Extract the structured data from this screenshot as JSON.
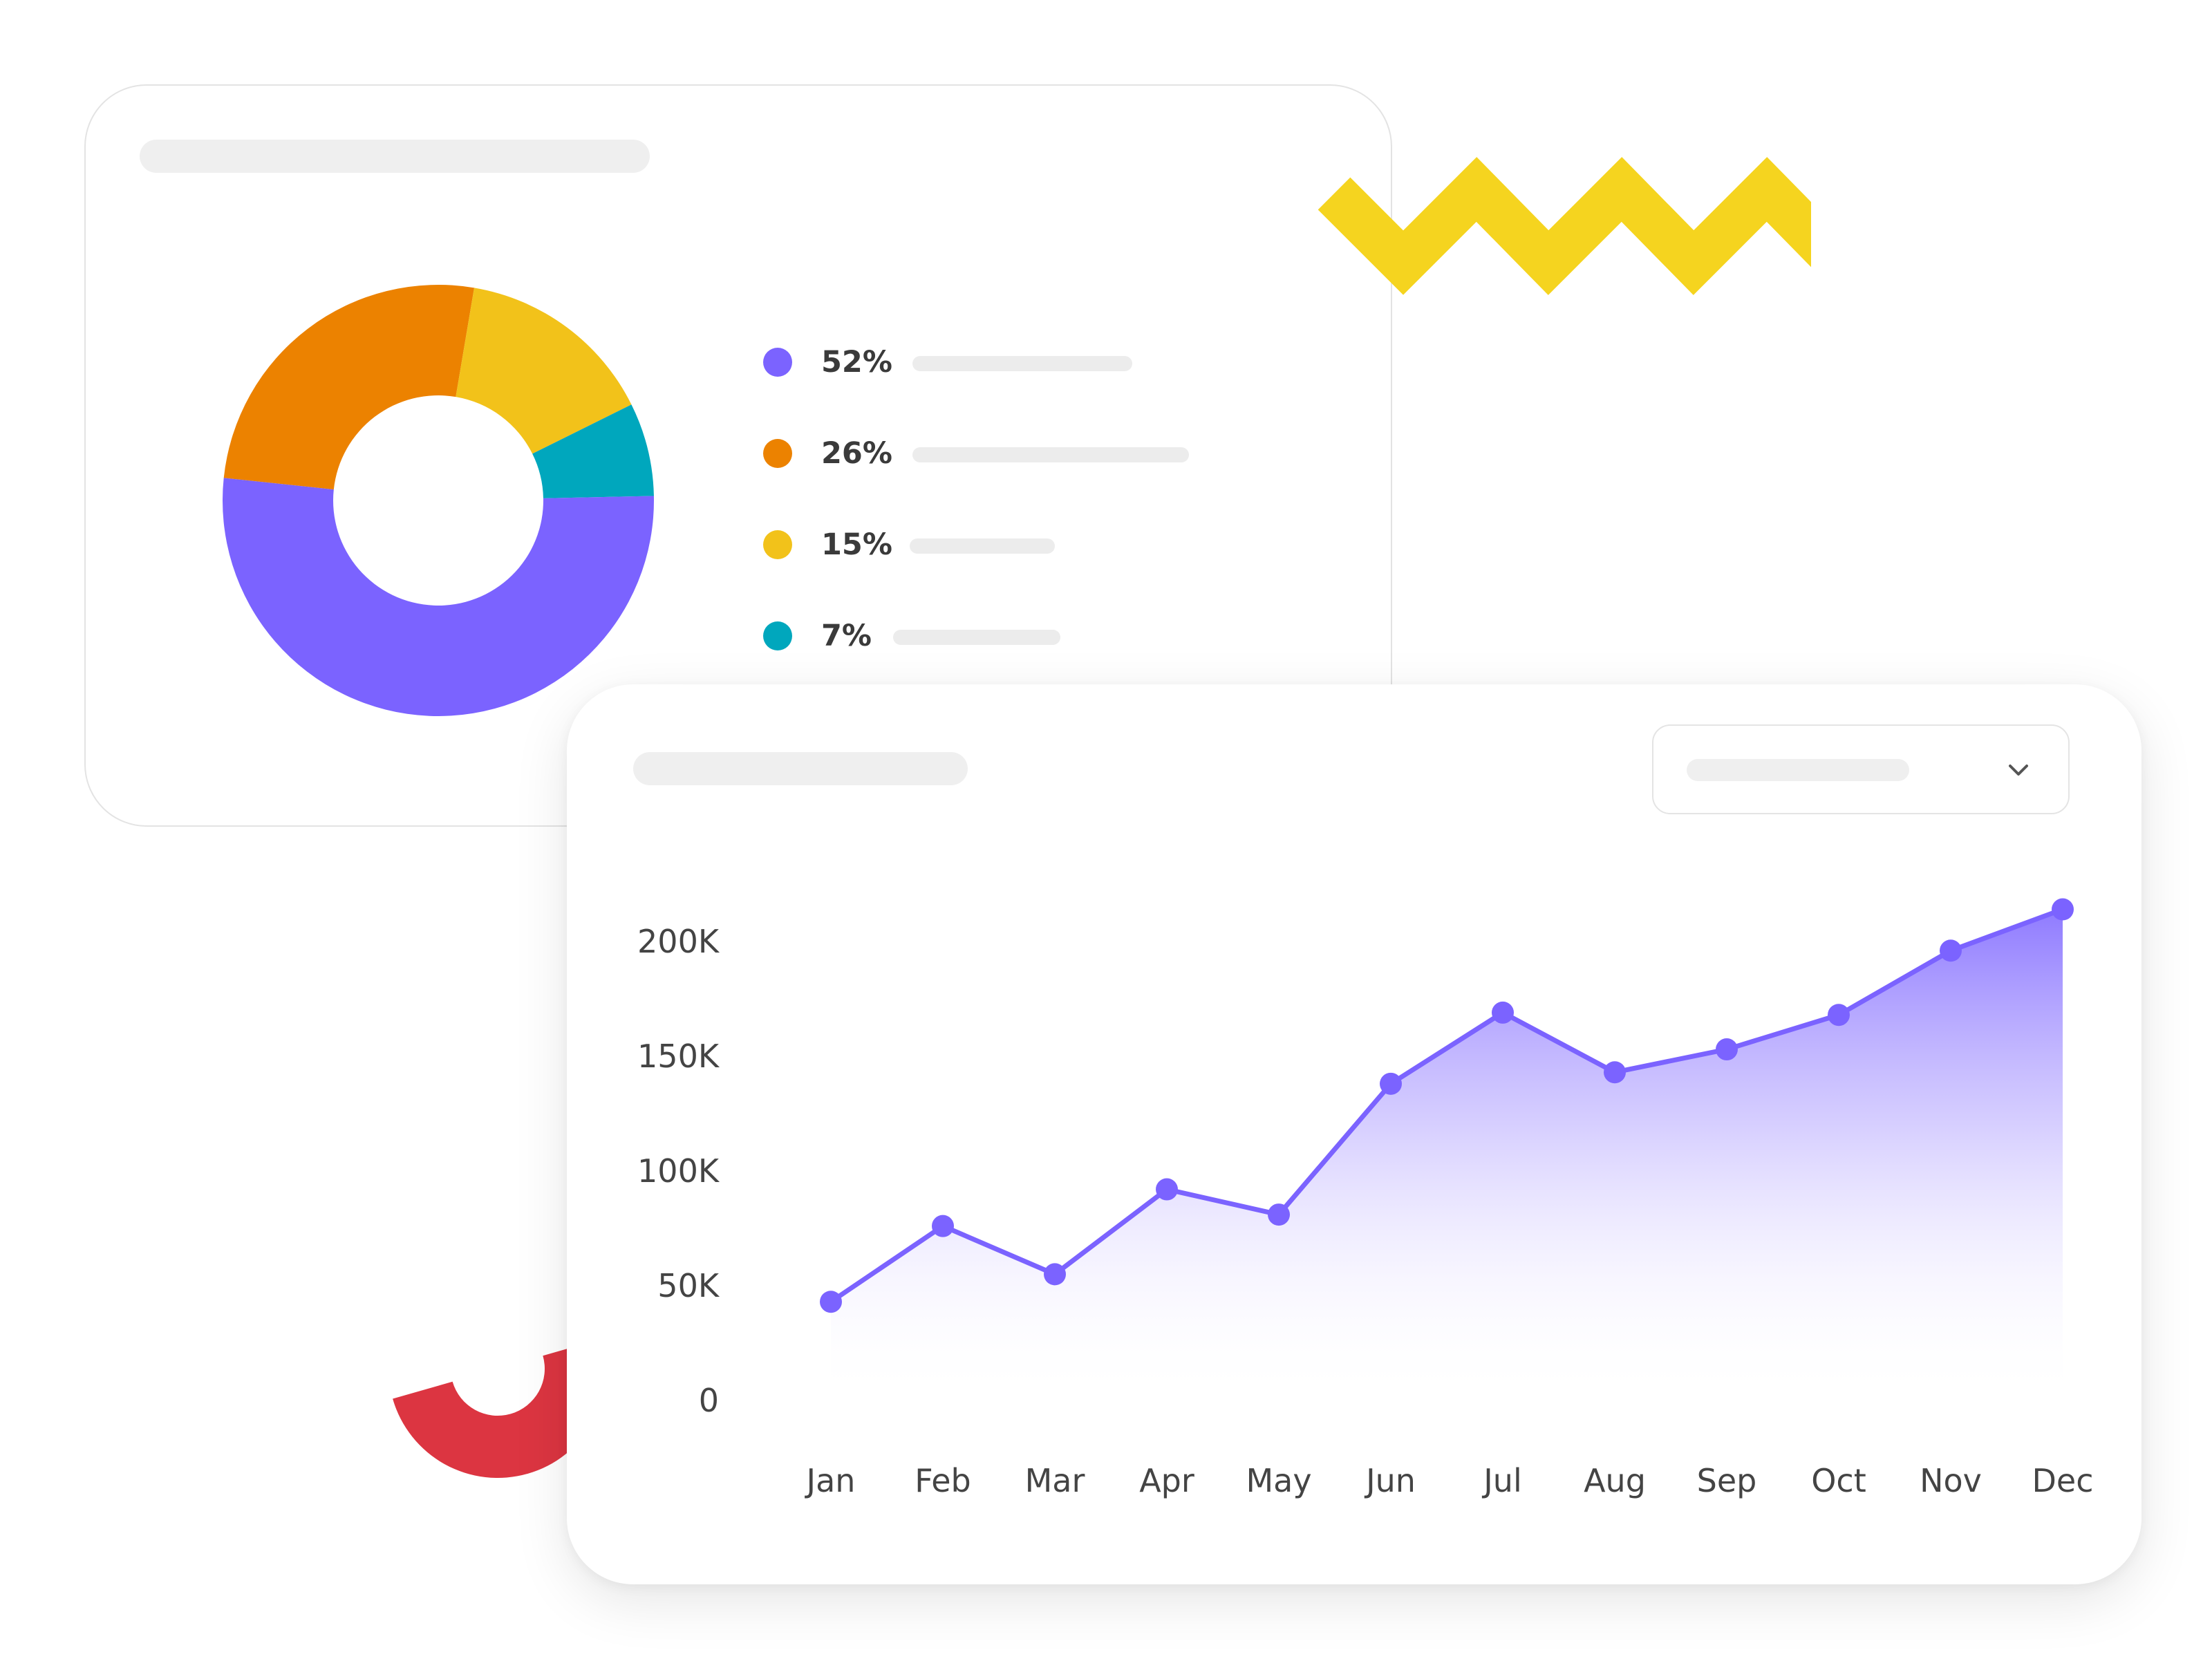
{
  "colors": {
    "purple": "#7b63ff",
    "orange": "#ec8200",
    "yellow": "#f2c21a",
    "teal": "#00a7bd",
    "zigzag": "#f5d41f",
    "red": "#dc3541"
  },
  "icons": {
    "dropdown": "chevron-down-icon"
  },
  "chart_data": [
    {
      "type": "pie",
      "donut": true,
      "title": "",
      "categories": [
        "",
        "",
        "",
        ""
      ],
      "values": [
        52,
        26,
        15,
        7
      ],
      "labels": [
        "52%",
        "26%",
        "15%",
        "7%"
      ],
      "colors": [
        "#7b63ff",
        "#ec8200",
        "#f2c21a",
        "#00a7bd"
      ],
      "legend_placement": "right"
    },
    {
      "type": "area",
      "title": "",
      "xlabel": "",
      "ylabel": "",
      "categories": [
        "Jan",
        "Feb",
        "Mar",
        "Apr",
        "May",
        "Jun",
        "Jul",
        "Aug",
        "Sep",
        "Oct",
        "Nov",
        "Dec"
      ],
      "series": [
        {
          "values": [
            43000,
            76000,
            55000,
            92000,
            81000,
            138000,
            169000,
            143000,
            153000,
            168000,
            196000,
            214000
          ],
          "color": "#7b63ff"
        }
      ],
      "yticks": [
        0,
        50000,
        100000,
        150000,
        200000
      ],
      "ytick_labels": [
        "0",
        "50K",
        "100K",
        "150K",
        "200K"
      ],
      "ylim": [
        0,
        200000
      ],
      "grid": false,
      "legend": false
    }
  ]
}
